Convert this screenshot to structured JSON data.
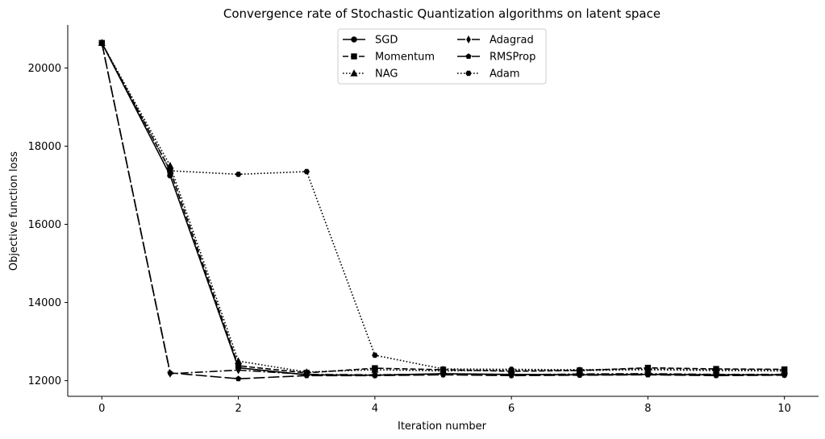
{
  "chart_data": {
    "type": "line",
    "title": "Convergence rate of Stochastic Quantization algorithms on latent space",
    "xlabel": "Iteration number",
    "ylabel": "Objective function loss",
    "xlim": [
      -0.5,
      10.5
    ],
    "ylim": [
      11600,
      21100
    ],
    "xticks": [
      0,
      2,
      4,
      6,
      8,
      10
    ],
    "yticks": [
      12000,
      14000,
      16000,
      18000,
      20000
    ],
    "grid": false,
    "legend": {
      "placement": "top-center",
      "columns": 2
    },
    "x": [
      0,
      1,
      2,
      3,
      4,
      5,
      6,
      7,
      8,
      9,
      10
    ],
    "series": [
      {
        "name": "SGD",
        "linestyle": "solid",
        "marker": "circle",
        "values": [
          20640,
          17250,
          12330,
          12150,
          12140,
          12180,
          12160,
          12150,
          12160,
          12150,
          12150
        ]
      },
      {
        "name": "Momentum",
        "linestyle": "dashed",
        "marker": "square",
        "values": [
          20640,
          17380,
          12380,
          12200,
          12320,
          12280,
          12240,
          12260,
          12330,
          12300,
          12290
        ]
      },
      {
        "name": "NAG",
        "linestyle": "dotted",
        "marker": "triangle",
        "values": [
          20640,
          17500,
          12500,
          12220,
          12280,
          12250,
          12270,
          12260,
          12280,
          12260,
          12250
        ]
      },
      {
        "name": "Adagrad",
        "linestyle": "dashdot",
        "marker": "diamond",
        "values": [
          20640,
          12180,
          12270,
          12160,
          12150,
          12170,
          12150,
          12170,
          12180,
          12160,
          12160
        ]
      },
      {
        "name": "RMSProp",
        "linestyle": "longdash",
        "marker": "pentagon",
        "values": [
          20640,
          12200,
          12050,
          12130,
          12130,
          12150,
          12130,
          12140,
          12150,
          12130,
          12140
        ]
      },
      {
        "name": "Adam",
        "linestyle": "dotted",
        "marker": "hexagon",
        "values": [
          20640,
          17370,
          17280,
          17350,
          12650,
          12300,
          12290,
          12280,
          12300,
          12280,
          12280
        ]
      }
    ]
  }
}
